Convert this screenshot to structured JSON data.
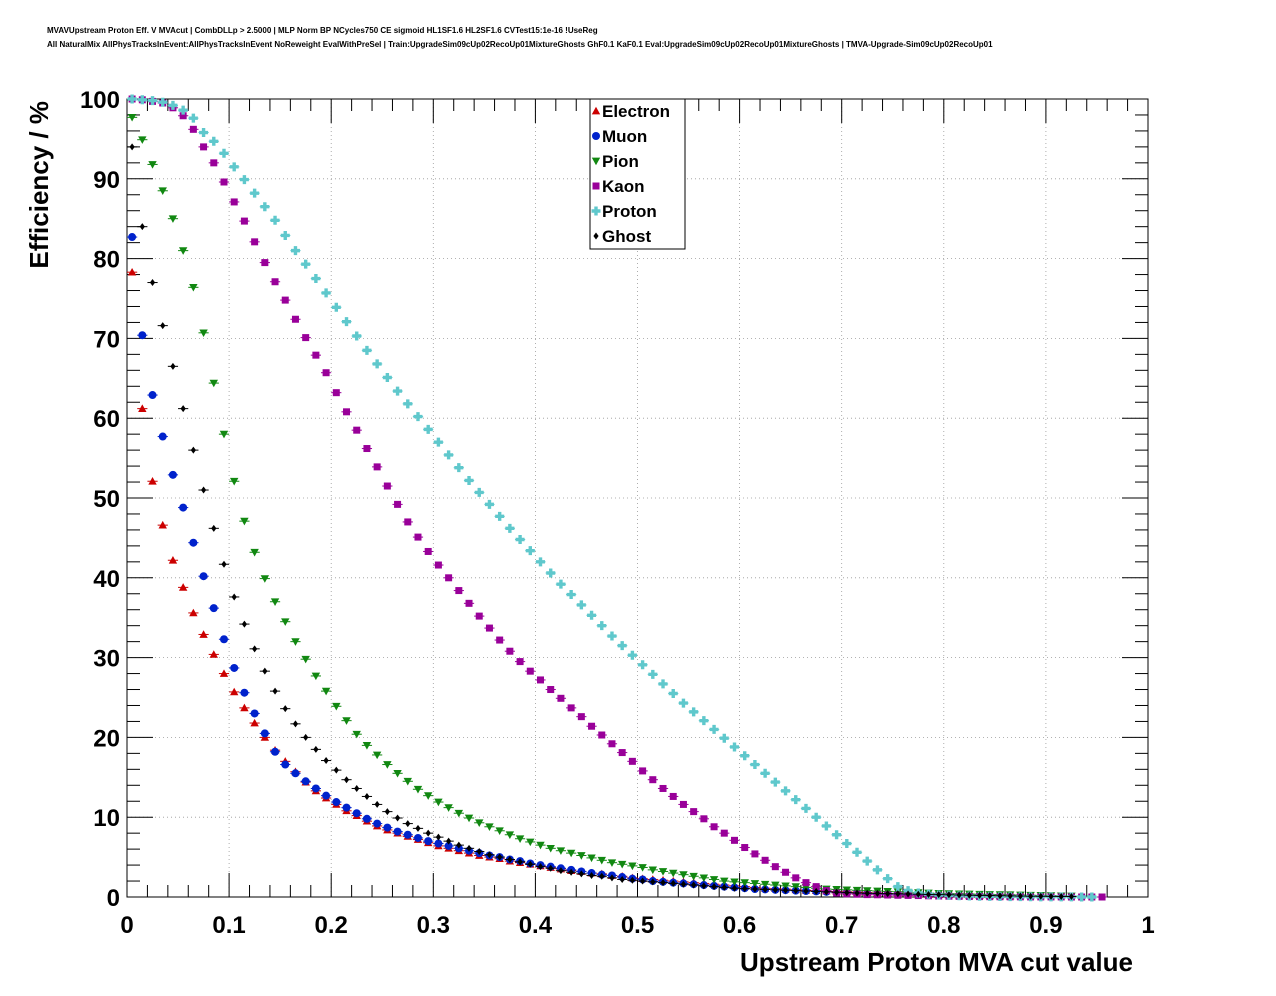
{
  "header": {
    "title_line1": "MVAVUpstream Proton Eff. V MVAcut | CombDLLp > 2.5000 | MLP Norm BP NCycles750 CE sigmoid HL1SF1.6 HL2SF1.6 CVTest15:1e-16 !UseReg",
    "title_line2": "All NaturalMix AllPhysTracksInEvent:AllPhysTracksInEvent NoReweight EvalWithPreSel | Train:UpgradeSim09cUp02RecoUp01MixtureGhosts GhF0.1 KaF0.1 Eval:UpgradeSim09cUp02RecoUp01MixtureGhosts | TMVA-Upgrade-Sim09cUp02RecoUp01"
  },
  "chart_data": {
    "type": "scatter",
    "xlabel": "Upstream Proton MVA cut value",
    "ylabel": "Efficiency / %",
    "xlim": [
      0,
      1
    ],
    "ylim": [
      0,
      100
    ],
    "xticks": [
      "0",
      "0.1",
      "0.2",
      "0.3",
      "0.4",
      "0.5",
      "0.6",
      "0.7",
      "0.8",
      "0.9",
      "1"
    ],
    "yticks": [
      "0",
      "10",
      "20",
      "30",
      "40",
      "50",
      "60",
      "70",
      "80",
      "90",
      "100"
    ],
    "grid": true,
    "legend_position": "top-center",
    "series": [
      {
        "name": "Electron",
        "color": "#cc0000",
        "marker": "triangle-up",
        "x": [
          0.005,
          0.015,
          0.025,
          0.035,
          0.045,
          0.055,
          0.065,
          0.075,
          0.085,
          0.095,
          0.105,
          0.115,
          0.125,
          0.135,
          0.145,
          0.155,
          0.165,
          0.175,
          0.185,
          0.195,
          0.205,
          0.215,
          0.225,
          0.235,
          0.245,
          0.255,
          0.265,
          0.275,
          0.285,
          0.295,
          0.305,
          0.315,
          0.325,
          0.335,
          0.345,
          0.355,
          0.365,
          0.375,
          0.385,
          0.395,
          0.405,
          0.415,
          0.425,
          0.435,
          0.445,
          0.455,
          0.465,
          0.475,
          0.485,
          0.495,
          0.505,
          0.515,
          0.525,
          0.535,
          0.545,
          0.555,
          0.565,
          0.575,
          0.585,
          0.595,
          0.605,
          0.615,
          0.625,
          0.635,
          0.645,
          0.655,
          0.665,
          0.675,
          0.685,
          0.695,
          0.705,
          0.715,
          0.725,
          0.735,
          0.745,
          0.755,
          0.765,
          0.775,
          0.785,
          0.795,
          0.805,
          0.815,
          0.825,
          0.835,
          0.845,
          0.855,
          0.865
        ],
        "y": [
          78.3,
          61.2,
          52.1,
          46.6,
          42.2,
          38.8,
          35.6,
          32.9,
          30.4,
          28.0,
          25.7,
          23.7,
          21.8,
          20.0,
          18.4,
          17.0,
          15.7,
          14.4,
          13.3,
          12.4,
          11.6,
          10.8,
          10.2,
          9.5,
          8.9,
          8.4,
          8.0,
          7.6,
          7.2,
          6.8,
          6.4,
          6.1,
          5.8,
          5.5,
          5.2,
          5.0,
          4.8,
          4.5,
          4.3,
          4.1,
          3.9,
          3.7,
          3.5,
          3.3,
          3.2,
          3.0,
          2.9,
          2.7,
          2.6,
          2.4,
          2.3,
          2.2,
          2.1,
          2.0,
          1.9,
          1.8,
          1.7,
          1.6,
          1.5,
          1.4,
          1.3,
          1.2,
          1.1,
          1.05,
          1.0,
          0.9,
          0.85,
          0.8,
          0.75,
          0.7,
          0.65,
          0.6,
          0.55,
          0.5,
          0.45,
          0.4,
          0.38,
          0.35,
          0.32,
          0.3,
          0.28,
          0.25,
          0.22,
          0.2,
          0.18,
          0.15,
          0.12
        ]
      },
      {
        "name": "Muon",
        "color": "#0022cc",
        "marker": "circle",
        "x": [
          0.005,
          0.015,
          0.025,
          0.035,
          0.045,
          0.055,
          0.065,
          0.075,
          0.085,
          0.095,
          0.105,
          0.115,
          0.125,
          0.135,
          0.145,
          0.155,
          0.165,
          0.175,
          0.185,
          0.195,
          0.205,
          0.215,
          0.225,
          0.235,
          0.245,
          0.255,
          0.265,
          0.275,
          0.285,
          0.295,
          0.305,
          0.315,
          0.325,
          0.335,
          0.345,
          0.355,
          0.365,
          0.375,
          0.385,
          0.395,
          0.405,
          0.415,
          0.425,
          0.435,
          0.445,
          0.455,
          0.465,
          0.475,
          0.485,
          0.495,
          0.505,
          0.515,
          0.525,
          0.535,
          0.545,
          0.555,
          0.565,
          0.575,
          0.585,
          0.595,
          0.605,
          0.615,
          0.625,
          0.635,
          0.645,
          0.655,
          0.665,
          0.675,
          0.685,
          0.695,
          0.705,
          0.715,
          0.725,
          0.735,
          0.745,
          0.755,
          0.765,
          0.775,
          0.785,
          0.795,
          0.805,
          0.815,
          0.825,
          0.835,
          0.845,
          0.855,
          0.865,
          0.875
        ],
        "y": [
          82.7,
          70.4,
          62.9,
          57.7,
          52.9,
          48.8,
          44.4,
          40.2,
          36.2,
          32.3,
          28.7,
          25.6,
          23.0,
          20.5,
          18.2,
          16.6,
          15.5,
          14.5,
          13.6,
          12.7,
          11.9,
          11.2,
          10.5,
          9.8,
          9.2,
          8.7,
          8.2,
          7.8,
          7.4,
          7.0,
          6.7,
          6.4,
          6.1,
          5.8,
          5.5,
          5.2,
          5.0,
          4.7,
          4.5,
          4.2,
          4.0,
          3.8,
          3.6,
          3.4,
          3.2,
          3.0,
          2.8,
          2.7,
          2.5,
          2.3,
          2.2,
          2.0,
          1.9,
          1.8,
          1.7,
          1.6,
          1.5,
          1.4,
          1.3,
          1.2,
          1.1,
          1.0,
          0.95,
          0.9,
          0.85,
          0.8,
          0.75,
          0.7,
          0.65,
          0.6,
          0.55,
          0.5,
          0.45,
          0.42,
          0.4,
          0.38,
          0.35,
          0.32,
          0.3,
          0.28,
          0.25,
          0.22,
          0.2,
          0.18,
          0.15,
          0.12,
          0.1,
          0.08
        ]
      },
      {
        "name": "Pion",
        "color": "#118811",
        "marker": "triangle-down",
        "x": [
          0.005,
          0.015,
          0.025,
          0.035,
          0.045,
          0.055,
          0.065,
          0.075,
          0.085,
          0.095,
          0.105,
          0.115,
          0.125,
          0.135,
          0.145,
          0.155,
          0.165,
          0.175,
          0.185,
          0.195,
          0.205,
          0.215,
          0.225,
          0.235,
          0.245,
          0.255,
          0.265,
          0.275,
          0.285,
          0.295,
          0.305,
          0.315,
          0.325,
          0.335,
          0.345,
          0.355,
          0.365,
          0.375,
          0.385,
          0.395,
          0.405,
          0.415,
          0.425,
          0.435,
          0.445,
          0.455,
          0.465,
          0.475,
          0.485,
          0.495,
          0.505,
          0.515,
          0.525,
          0.535,
          0.545,
          0.555,
          0.565,
          0.575,
          0.585,
          0.595,
          0.605,
          0.615,
          0.625,
          0.635,
          0.645,
          0.655,
          0.665,
          0.675,
          0.685,
          0.695,
          0.705,
          0.715,
          0.725,
          0.735,
          0.745,
          0.755,
          0.765,
          0.775,
          0.785,
          0.795,
          0.805,
          0.815,
          0.825,
          0.835,
          0.845,
          0.855,
          0.865,
          0.875,
          0.885,
          0.895,
          0.905,
          0.915,
          0.925
        ],
        "y": [
          97.7,
          94.9,
          91.8,
          88.5,
          85.0,
          81.0,
          76.4,
          70.7,
          64.4,
          58.0,
          52.1,
          47.1,
          43.2,
          39.9,
          37.0,
          34.5,
          32.0,
          29.8,
          27.7,
          25.8,
          23.9,
          22.1,
          20.4,
          19.0,
          17.8,
          16.6,
          15.5,
          14.5,
          13.5,
          12.7,
          11.9,
          11.2,
          10.5,
          9.9,
          9.3,
          8.8,
          8.3,
          7.8,
          7.3,
          6.9,
          6.5,
          6.1,
          5.8,
          5.5,
          5.2,
          4.9,
          4.6,
          4.3,
          4.1,
          3.9,
          3.7,
          3.4,
          3.2,
          3.0,
          2.8,
          2.6,
          2.4,
          2.2,
          2.0,
          1.9,
          1.8,
          1.7,
          1.6,
          1.5,
          1.4,
          1.3,
          1.2,
          1.1,
          1.0,
          0.95,
          0.9,
          0.85,
          0.8,
          0.75,
          0.7,
          0.65,
          0.6,
          0.55,
          0.5,
          0.45,
          0.42,
          0.4,
          0.38,
          0.35,
          0.32,
          0.3,
          0.28,
          0.25,
          0.22,
          0.2,
          0.18,
          0.15,
          0.12
        ]
      },
      {
        "name": "Kaon",
        "color": "#990099",
        "marker": "square",
        "x": [
          0.005,
          0.015,
          0.025,
          0.035,
          0.045,
          0.055,
          0.065,
          0.075,
          0.085,
          0.095,
          0.105,
          0.115,
          0.125,
          0.135,
          0.145,
          0.155,
          0.165,
          0.175,
          0.185,
          0.195,
          0.205,
          0.215,
          0.225,
          0.235,
          0.245,
          0.255,
          0.265,
          0.275,
          0.285,
          0.295,
          0.305,
          0.315,
          0.325,
          0.335,
          0.345,
          0.355,
          0.365,
          0.375,
          0.385,
          0.395,
          0.405,
          0.415,
          0.425,
          0.435,
          0.445,
          0.455,
          0.465,
          0.475,
          0.485,
          0.495,
          0.505,
          0.515,
          0.525,
          0.535,
          0.545,
          0.555,
          0.565,
          0.575,
          0.585,
          0.595,
          0.605,
          0.615,
          0.625,
          0.635,
          0.645,
          0.655,
          0.665,
          0.675,
          0.685,
          0.695,
          0.705,
          0.715,
          0.725,
          0.735,
          0.745,
          0.755,
          0.765,
          0.775,
          0.785,
          0.795,
          0.805,
          0.815,
          0.825,
          0.835,
          0.845,
          0.855,
          0.865,
          0.875,
          0.885,
          0.895,
          0.905,
          0.915,
          0.925,
          0.935,
          0.945,
          0.955
        ],
        "y": [
          100,
          99.9,
          99.7,
          99.5,
          98.9,
          97.9,
          96.2,
          94.0,
          92.0,
          89.6,
          87.1,
          84.7,
          82.1,
          79.5,
          77.1,
          74.8,
          72.4,
          70.1,
          67.9,
          65.7,
          63.2,
          60.8,
          58.5,
          56.2,
          53.9,
          51.5,
          49.2,
          47.0,
          45.1,
          43.3,
          41.6,
          40.0,
          38.4,
          36.8,
          35.2,
          33.7,
          32.2,
          30.8,
          29.5,
          28.3,
          27.2,
          26.0,
          24.9,
          23.7,
          22.6,
          21.4,
          20.3,
          19.2,
          18.1,
          17.0,
          15.8,
          14.7,
          13.6,
          12.6,
          11.6,
          10.7,
          9.8,
          8.8,
          8.0,
          7.1,
          6.2,
          5.4,
          4.6,
          3.8,
          3.1,
          2.4,
          1.8,
          1.3,
          0.8,
          0.5,
          0.4,
          0.35,
          0.3,
          0.28,
          0.25,
          0.22,
          0.2,
          0.18,
          0.15,
          0.12,
          0.1,
          0.08,
          0.06,
          0.05,
          0.04,
          0.03,
          0.02,
          0.02,
          0.01,
          0.01,
          0.01,
          0.01,
          0.0,
          0.0,
          0.0,
          0.0
        ]
      },
      {
        "name": "Proton",
        "color": "#5fc8cc",
        "marker": "cross",
        "x": [
          0.005,
          0.015,
          0.025,
          0.035,
          0.045,
          0.055,
          0.065,
          0.075,
          0.085,
          0.095,
          0.105,
          0.115,
          0.125,
          0.135,
          0.145,
          0.155,
          0.165,
          0.175,
          0.185,
          0.195,
          0.205,
          0.215,
          0.225,
          0.235,
          0.245,
          0.255,
          0.265,
          0.275,
          0.285,
          0.295,
          0.305,
          0.315,
          0.325,
          0.335,
          0.345,
          0.355,
          0.365,
          0.375,
          0.385,
          0.395,
          0.405,
          0.415,
          0.425,
          0.435,
          0.445,
          0.455,
          0.465,
          0.475,
          0.485,
          0.495,
          0.505,
          0.515,
          0.525,
          0.535,
          0.545,
          0.555,
          0.565,
          0.575,
          0.585,
          0.595,
          0.605,
          0.615,
          0.625,
          0.635,
          0.645,
          0.655,
          0.665,
          0.675,
          0.685,
          0.695,
          0.705,
          0.715,
          0.725,
          0.735,
          0.745,
          0.755,
          0.765,
          0.775,
          0.785,
          0.795,
          0.805,
          0.815,
          0.825,
          0.835,
          0.845,
          0.855,
          0.865,
          0.875,
          0.885,
          0.895,
          0.905,
          0.915,
          0.925,
          0.935,
          0.945
        ],
        "y": [
          100,
          99.9,
          99.8,
          99.6,
          99.2,
          98.6,
          97.6,
          95.8,
          94.7,
          93.2,
          91.5,
          89.9,
          88.2,
          86.5,
          84.8,
          82.9,
          81.0,
          79.3,
          77.5,
          75.7,
          73.9,
          72.1,
          70.3,
          68.5,
          66.8,
          65.1,
          63.4,
          61.8,
          60.2,
          58.6,
          57.0,
          55.4,
          53.8,
          52.2,
          50.7,
          49.2,
          47.7,
          46.2,
          44.8,
          43.4,
          42.0,
          40.6,
          39.2,
          37.9,
          36.6,
          35.3,
          34.0,
          32.7,
          31.5,
          30.3,
          29.1,
          27.9,
          26.7,
          25.5,
          24.3,
          23.2,
          22.1,
          21.0,
          19.9,
          18.8,
          17.7,
          16.6,
          15.5,
          14.4,
          13.3,
          12.2,
          11.1,
          10.0,
          8.9,
          7.8,
          6.7,
          5.6,
          4.5,
          3.4,
          2.3,
          1.3,
          0.8,
          0.5,
          0.35,
          0.25,
          0.2,
          0.15,
          0.12,
          0.1,
          0.08,
          0.06,
          0.05,
          0.04,
          0.03,
          0.02,
          0.02,
          0.01,
          0.01,
          0.0,
          0.0
        ]
      },
      {
        "name": "Ghost",
        "color": "#000000",
        "marker": "diamond",
        "x": [
          0.005,
          0.015,
          0.025,
          0.035,
          0.045,
          0.055,
          0.065,
          0.075,
          0.085,
          0.095,
          0.105,
          0.115,
          0.125,
          0.135,
          0.145,
          0.155,
          0.165,
          0.175,
          0.185,
          0.195,
          0.205,
          0.215,
          0.225,
          0.235,
          0.245,
          0.255,
          0.265,
          0.275,
          0.285,
          0.295,
          0.305,
          0.315,
          0.325,
          0.335,
          0.345,
          0.355,
          0.365,
          0.375,
          0.385,
          0.395,
          0.405,
          0.415,
          0.425,
          0.435,
          0.445,
          0.455,
          0.465,
          0.475,
          0.485,
          0.495,
          0.505,
          0.515,
          0.525,
          0.535,
          0.545,
          0.555,
          0.565,
          0.575,
          0.585,
          0.595,
          0.605,
          0.615,
          0.625,
          0.635,
          0.645,
          0.655,
          0.665,
          0.675,
          0.685,
          0.695,
          0.705,
          0.715,
          0.725,
          0.735,
          0.745,
          0.755,
          0.765,
          0.775,
          0.785,
          0.795,
          0.805,
          0.815,
          0.825,
          0.835,
          0.845,
          0.855,
          0.865,
          0.875,
          0.885,
          0.895,
          0.905,
          0.915,
          0.925
        ],
        "y": [
          94.0,
          84.0,
          77.0,
          71.6,
          66.5,
          61.2,
          56.0,
          51.0,
          46.2,
          41.7,
          37.6,
          34.2,
          31.1,
          28.3,
          25.8,
          23.6,
          21.7,
          20.0,
          18.5,
          17.1,
          15.9,
          14.7,
          13.6,
          12.6,
          11.6,
          10.7,
          9.9,
          9.2,
          8.6,
          8.0,
          7.5,
          7.0,
          6.5,
          6.1,
          5.7,
          5.3,
          5.0,
          4.7,
          4.4,
          4.1,
          3.8,
          3.6,
          3.3,
          3.1,
          2.9,
          2.7,
          2.6,
          2.4,
          2.2,
          2.1,
          2.0,
          1.9,
          1.8,
          1.7,
          1.6,
          1.5,
          1.4,
          1.3,
          1.2,
          1.1,
          1.05,
          1.0,
          0.95,
          0.9,
          0.85,
          0.8,
          0.75,
          0.7,
          0.65,
          0.6,
          0.55,
          0.5,
          0.47,
          0.45,
          0.42,
          0.4,
          0.38,
          0.35,
          0.32,
          0.3,
          0.28,
          0.25,
          0.22,
          0.2,
          0.18,
          0.16,
          0.14,
          0.12,
          0.1,
          0.09,
          0.08,
          0.07,
          0.06
        ]
      }
    ]
  }
}
